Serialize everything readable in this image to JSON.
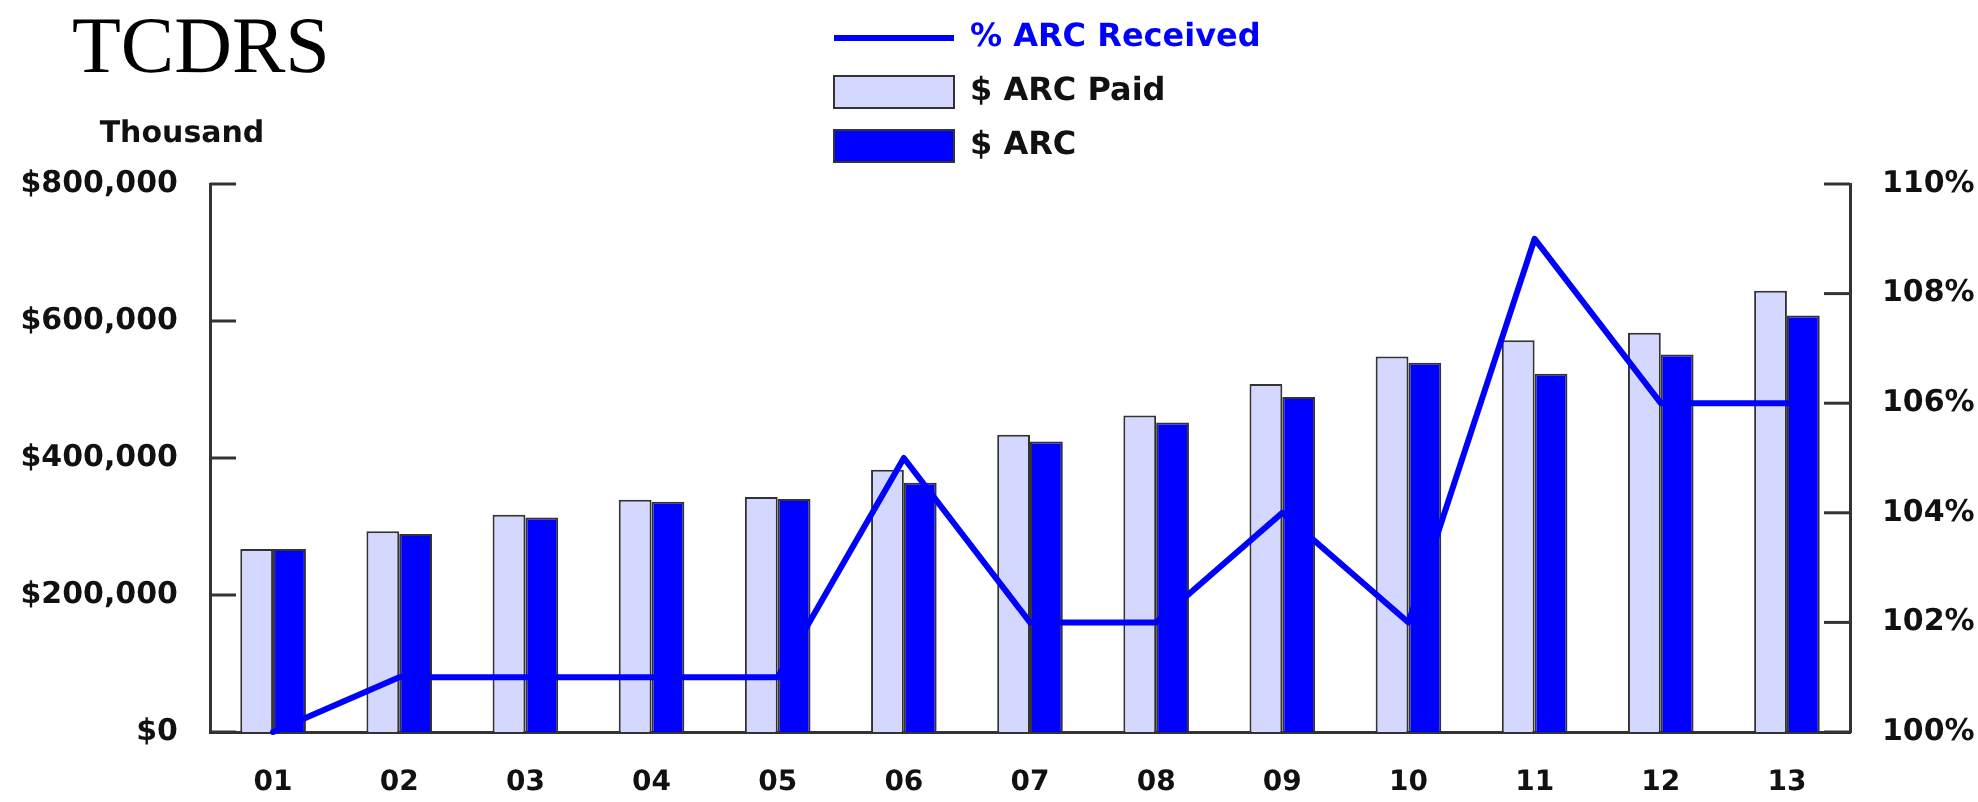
{
  "chart_data": {
    "type": "bar",
    "title": "TCDRS",
    "ylabel": "Thousand",
    "categories": [
      "01",
      "02",
      "03",
      "04",
      "05",
      "06",
      "07",
      "08",
      "09",
      "10",
      "11",
      "12",
      "13"
    ],
    "series": [
      {
        "name": "% ARC Received",
        "type": "line",
        "axis": "y2",
        "color": "#0000ff",
        "values": [
          100,
          101,
          101,
          101,
          101,
          105,
          102,
          102,
          104,
          102,
          109,
          106,
          106
        ]
      },
      {
        "name": "$ ARC Paid",
        "color": "#d4d8ff",
        "values": [
          267000,
          293000,
          317000,
          339000,
          343000,
          383000,
          434000,
          462000,
          508000,
          548000,
          572000,
          583000,
          644000
        ]
      },
      {
        "name": "$ ARC",
        "color": "#0000ff",
        "values": [
          267000,
          289000,
          313000,
          336000,
          340000,
          364000,
          424000,
          452000,
          489000,
          539000,
          523000,
          551000,
          608000
        ]
      }
    ],
    "ylim": [
      0,
      800000
    ],
    "yticks": [
      {
        "value": 0,
        "label": "$0"
      },
      {
        "value": 200000,
        "label": "$200,000"
      },
      {
        "value": 400000,
        "label": "$400,000"
      },
      {
        "value": 600000,
        "label": "$600,000"
      },
      {
        "value": 800000,
        "label": "$800,000"
      }
    ],
    "y2lim": [
      100,
      110
    ],
    "y2ticks": [
      {
        "value": 100,
        "label": "100%"
      },
      {
        "value": 102,
        "label": "102%"
      },
      {
        "value": 104,
        "label": "104%"
      },
      {
        "value": 106,
        "label": "106%"
      },
      {
        "value": 108,
        "label": "108%"
      },
      {
        "value": 110,
        "label": "110%"
      }
    ],
    "grid": false,
    "legend": "top"
  }
}
